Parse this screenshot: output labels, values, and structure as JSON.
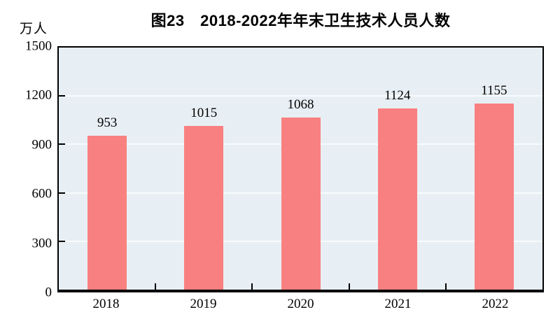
{
  "chart_data": {
    "type": "bar",
    "title": "图23　2018-2022年年末卫生技术人员人数",
    "unit_label": "万人",
    "categories": [
      "2018",
      "2019",
      "2020",
      "2021",
      "2022"
    ],
    "values": [
      953,
      1015,
      1068,
      1124,
      1155
    ],
    "xlabel": "",
    "ylabel": "万人",
    "ylim": [
      0,
      1500
    ],
    "yticks": [
      0,
      300,
      600,
      900,
      1200,
      1500
    ],
    "grid": true,
    "legend": "none",
    "colors": {
      "bar": "#f98080",
      "plot_background": "#e8eff4",
      "gridline": "#f7fbfd",
      "axis": "#000000",
      "text": "#000000",
      "page_background": "#ffffff"
    }
  }
}
